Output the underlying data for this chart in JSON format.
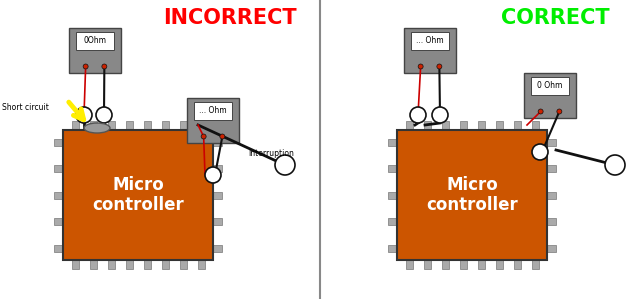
{
  "bg_color": "#ffffff",
  "panel_bg": "#ffffff",
  "divider_color": "#888888",
  "incorrect_title": "INCORRECT",
  "correct_title": "CORRECT",
  "incorrect_color": "#ff0000",
  "correct_color": "#00ee00",
  "mc_color": "#cc5500",
  "meter_body": "#888888",
  "meter_screen": "#ffffff",
  "pin_color": "#aaaaaa",
  "pin_edge": "#777777",
  "wire_color": "#111111",
  "red_wire": "#cc0000",
  "sc_blob_color": "#999999",
  "sc_blob_edge": "#555555",
  "yellow_color": "#ffee00",
  "short_circuit_label": "Short circuit",
  "interruption_label": "Interruption",
  "mc_label": "Micro\ncontroller",
  "meter1_left_text": "0Ohm",
  "meter2_left_text": "... Ohm",
  "meter1_right_text": "... Ohm",
  "meter2_right_text": "0 Ohm",
  "title_fontsize": 15,
  "label_fontsize": 5.5,
  "mc_fontsize": 12
}
